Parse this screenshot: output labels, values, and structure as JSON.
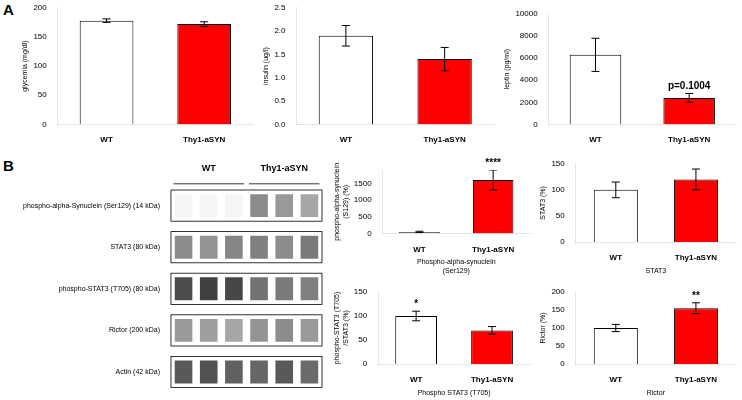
{
  "chart_data": [
    {
      "type": "bar",
      "panel_label": "A",
      "categories": [
        "WT",
        "Thy1-aSYN"
      ],
      "values": [
        178,
        172
      ],
      "errors": [
        3,
        4
      ],
      "colors": [
        "white",
        "red"
      ],
      "ylabel": "glycemia (mg/dl)",
      "ylim": [
        0,
        200
      ],
      "yticks": [
        0,
        50,
        100,
        150,
        200
      ],
      "grid": false
    },
    {
      "type": "bar",
      "categories": [
        "WT",
        "Thy1-aSYN"
      ],
      "values": [
        1.9,
        1.4
      ],
      "errors": [
        0.22,
        0.25
      ],
      "colors": [
        "white",
        "red"
      ],
      "ylabel": "insulin (ug/l)",
      "ylim": [
        0.0,
        2.5
      ],
      "yticks": [
        {
          "value": 0.0,
          "label": "0.0"
        },
        {
          "value": 0.5,
          "label": "0.5"
        },
        {
          "value": 1.0,
          "label": "1.0"
        },
        {
          "value": 1.5,
          "label": "1.5"
        },
        {
          "value": 2.0,
          "label": "2.0"
        },
        {
          "value": 2.5,
          "label": "2.5"
        }
      ],
      "grid": false
    },
    {
      "type": "bar",
      "categories": [
        "WT",
        "Thy1-aSYN"
      ],
      "values": [
        6300,
        2400
      ],
      "errors": [
        1500,
        400
      ],
      "colors": [
        "white",
        "red"
      ],
      "ylabel": "leptin (pg/ml)",
      "ylim": [
        0,
        10000
      ],
      "yticks": [
        0,
        2000,
        4000,
        6000,
        8000,
        10000
      ],
      "grid": false,
      "annotations": [
        {
          "text": "p=0.1004",
          "category": "Thy1-aSYN"
        }
      ]
    },
    {
      "type": "heatmap",
      "panel_label": "B",
      "rows": [
        "phospho-alpha-Synuclein (Ser129) (14 kDa)",
        "STAT3 (80 kDa)",
        "phospho-STAT3 (T705) (80 kDa)",
        "Rictor (200 kDa)",
        "Actin (42 kDa)"
      ],
      "column_groups": [
        "WT",
        "Thy1-aSYN"
      ],
      "cells": [
        [
          0.96,
          0.96,
          0.96,
          0.55,
          0.6,
          0.65
        ],
        [
          0.55,
          0.58,
          0.52,
          0.5,
          0.55,
          0.48
        ],
        [
          0.3,
          0.25,
          0.28,
          0.45,
          0.48,
          0.5
        ],
        [
          0.6,
          0.62,
          0.65,
          0.58,
          0.55,
          0.6
        ],
        [
          0.35,
          0.32,
          0.38,
          0.4,
          0.35,
          0.42
        ]
      ]
    },
    {
      "type": "bar",
      "categories": [
        "WT",
        "Thy1-aSYN"
      ],
      "values": [
        50,
        1600
      ],
      "errors": [
        20,
        300
      ],
      "colors": [
        "white",
        "red"
      ],
      "ylabel": "phospho-alpha-synuclein\n(S129) (%)",
      "xlabel": "Phospho-alpha-synuclein\n(Ser129)",
      "ylim": [
        0,
        1900
      ],
      "yticks": [
        0,
        500,
        1000,
        1500
      ],
      "grid": false,
      "annotations": [
        {
          "text": "****",
          "category": "Thy1-aSYN"
        }
      ]
    },
    {
      "type": "bar",
      "categories": [
        "WT",
        "Thy1-aSYN"
      ],
      "values": [
        100,
        120
      ],
      "errors": [
        15,
        20
      ],
      "colors": [
        "white",
        "red"
      ],
      "ylabel": "STAT3 (%)",
      "xlabel": "STAT3",
      "ylim": [
        0,
        150
      ],
      "yticks": [
        0,
        50,
        100,
        150
      ],
      "grid": false
    },
    {
      "type": "bar",
      "categories": [
        "WT",
        "Thy1-aSYN"
      ],
      "values": [
        100,
        70
      ],
      "errors": [
        10,
        8
      ],
      "colors": [
        "white",
        "red"
      ],
      "ylabel": "phospho-STAT3 (T705)\n/STAT3 (%)",
      "xlabel": "Phospho STAT3 (T705)",
      "ylim": [
        0,
        150
      ],
      "yticks": [
        0,
        50,
        100,
        150
      ],
      "grid": false,
      "annotations": [
        {
          "text": "*",
          "category": "WT"
        }
      ]
    },
    {
      "type": "bar",
      "categories": [
        "WT",
        "Thy1-aSYN"
      ],
      "values": [
        100,
        155
      ],
      "errors": [
        10,
        15
      ],
      "colors": [
        "white",
        "red"
      ],
      "ylabel": "Rictor (%)",
      "xlabel": "Rictor",
      "ylim": [
        0,
        200
      ],
      "yticks": [
        0,
        50,
        100,
        150,
        200
      ],
      "grid": false,
      "annotations": [
        {
          "text": "**",
          "category": "Thy1-aSYN"
        }
      ]
    }
  ]
}
